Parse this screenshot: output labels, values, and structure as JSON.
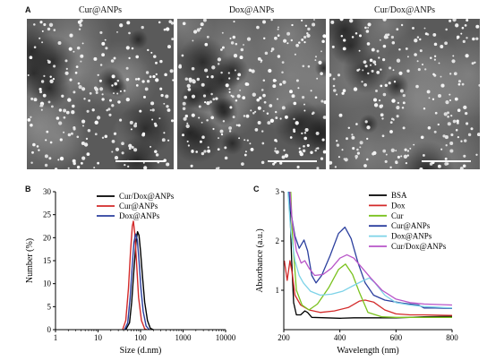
{
  "panel_a": {
    "letter": "A",
    "images": [
      {
        "title": "Cur@ANPs",
        "seed": 11,
        "dots": 230,
        "darkBlobs": 9
      },
      {
        "title": "Dox@ANPs",
        "seed": 37,
        "dots": 250,
        "darkBlobs": 14
      },
      {
        "title": "Cur/Dox@ANPs",
        "seed": 73,
        "dots": 240,
        "darkBlobs": 6
      }
    ]
  },
  "chart_data": [
    {
      "panel": "B",
      "type": "line",
      "xlabel": "Size (d.nm)",
      "ylabel": "Number (%)",
      "x_scale": "log",
      "xlim": [
        1,
        10000
      ],
      "ylim": [
        0,
        30
      ],
      "x_ticks": [
        "1",
        "10",
        "100",
        "1000",
        "10000"
      ],
      "y_ticks": [
        "0",
        "5",
        "10",
        "15",
        "20",
        "25",
        "30"
      ],
      "legend_position": "top-right",
      "series": [
        {
          "name": "Cur/Dox@ANPs",
          "color": "#000000",
          "points": [
            [
              45,
              0
            ],
            [
              55,
              1.5
            ],
            [
              62,
              6
            ],
            [
              70,
              13
            ],
            [
              78,
              19
            ],
            [
              85,
              21.3
            ],
            [
              92,
              20.5
            ],
            [
              100,
              17
            ],
            [
              110,
              12
            ],
            [
              125,
              6
            ],
            [
              145,
              2
            ],
            [
              170,
              0.3
            ],
            [
              200,
              0
            ]
          ]
        },
        {
          "name": "Cur@ANPs",
          "color": "#d32a2a",
          "points": [
            [
              38,
              0
            ],
            [
              45,
              2
            ],
            [
              52,
              9
            ],
            [
              58,
              17
            ],
            [
              64,
              22.5
            ],
            [
              68,
              23.6
            ],
            [
              73,
              21
            ],
            [
              80,
              15
            ],
            [
              90,
              7
            ],
            [
              105,
              2
            ],
            [
              125,
              0.2
            ],
            [
              140,
              0
            ]
          ]
        },
        {
          "name": "Dox@ANPs",
          "color": "#2b3f9e",
          "points": [
            [
              42,
              0
            ],
            [
              50,
              1.5
            ],
            [
              57,
              7
            ],
            [
              64,
              14
            ],
            [
              70,
              19
            ],
            [
              77,
              20.8
            ],
            [
              84,
              19.5
            ],
            [
              92,
              15
            ],
            [
              102,
              9
            ],
            [
              115,
              4
            ],
            [
              135,
              0.8
            ],
            [
              160,
              0
            ]
          ]
        }
      ]
    },
    {
      "panel": "C",
      "type": "line",
      "xlabel": "Wavelength (nm)",
      "ylabel": "Absorbance (a.u.)",
      "xlim": [
        200,
        800
      ],
      "ylim": [
        0.2,
        3
      ],
      "x_ticks": [
        "200",
        "400",
        "600",
        "800"
      ],
      "y_ticks": [
        "1",
        "2",
        "3"
      ],
      "legend_position": "top-right",
      "series": [
        {
          "name": "BSA",
          "color": "#000000",
          "points": [
            [
              220,
              3
            ],
            [
              228,
              1.6
            ],
            [
              235,
              0.75
            ],
            [
              245,
              0.5
            ],
            [
              260,
              0.5
            ],
            [
              275,
              0.58
            ],
            [
              285,
              0.55
            ],
            [
              300,
              0.45
            ],
            [
              350,
              0.44
            ],
            [
              400,
              0.43
            ],
            [
              450,
              0.44
            ],
            [
              500,
              0.44
            ],
            [
              600,
              0.44
            ],
            [
              650,
              0.45
            ],
            [
              700,
              0.46
            ],
            [
              800,
              0.47
            ]
          ]
        },
        {
          "name": "Dox",
          "color": "#d32a2a",
          "points": [
            [
              202,
              1.6
            ],
            [
              212,
              1.2
            ],
            [
              222,
              1.6
            ],
            [
              230,
              1.35
            ],
            [
              240,
              0.9
            ],
            [
              260,
              0.7
            ],
            [
              290,
              0.6
            ],
            [
              330,
              0.55
            ],
            [
              380,
              0.58
            ],
            [
              430,
              0.65
            ],
            [
              470,
              0.78
            ],
            [
              490,
              0.8
            ],
            [
              520,
              0.76
            ],
            [
              560,
              0.6
            ],
            [
              600,
              0.52
            ],
            [
              650,
              0.5
            ],
            [
              700,
              0.5
            ],
            [
              800,
              0.49
            ]
          ]
        },
        {
          "name": "Cur",
          "color": "#7ac21e",
          "points": [
            [
              225,
              3
            ],
            [
              232,
              2.0
            ],
            [
              245,
              1.0
            ],
            [
              265,
              0.7
            ],
            [
              290,
              0.6
            ],
            [
              320,
              0.72
            ],
            [
              360,
              1.05
            ],
            [
              395,
              1.42
            ],
            [
              420,
              1.53
            ],
            [
              445,
              1.32
            ],
            [
              470,
              0.95
            ],
            [
              500,
              0.55
            ],
            [
              550,
              0.46
            ],
            [
              600,
              0.45
            ],
            [
              700,
              0.45
            ],
            [
              800,
              0.45
            ]
          ]
        },
        {
          "name": "Cur@ANPs",
          "color": "#2b3f9e",
          "points": [
            [
              218,
              3
            ],
            [
              225,
              2.6
            ],
            [
              240,
              2.1
            ],
            [
              255,
              1.85
            ],
            [
              272,
              2.02
            ],
            [
              285,
              1.8
            ],
            [
              300,
              1.3
            ],
            [
              315,
              1.15
            ],
            [
              335,
              1.3
            ],
            [
              365,
              1.7
            ],
            [
              395,
              2.15
            ],
            [
              418,
              2.28
            ],
            [
              440,
              2.05
            ],
            [
              465,
              1.55
            ],
            [
              490,
              1.15
            ],
            [
              520,
              0.9
            ],
            [
              560,
              0.8
            ],
            [
              620,
              0.74
            ],
            [
              680,
              0.7
            ],
            [
              700,
              0.64
            ],
            [
              740,
              0.64
            ],
            [
              800,
              0.63
            ]
          ]
        },
        {
          "name": "Dox@ANPs",
          "color": "#7ed3e8",
          "points": [
            [
              215,
              3
            ],
            [
              225,
              2.2
            ],
            [
              240,
              1.6
            ],
            [
              255,
              1.3
            ],
            [
              270,
              1.15
            ],
            [
              295,
              0.98
            ],
            [
              330,
              0.9
            ],
            [
              370,
              0.92
            ],
            [
              410,
              0.98
            ],
            [
              450,
              1.1
            ],
            [
              485,
              1.2
            ],
            [
              505,
              1.25
            ],
            [
              525,
              1.15
            ],
            [
              560,
              0.9
            ],
            [
              600,
              0.75
            ],
            [
              650,
              0.7
            ],
            [
              700,
              0.67
            ],
            [
              800,
              0.64
            ]
          ]
        },
        {
          "name": "Cur/Dox@ANPs",
          "color": "#b855c8",
          "points": [
            [
              222,
              3
            ],
            [
              230,
              2.4
            ],
            [
              245,
              1.8
            ],
            [
              262,
              1.55
            ],
            [
              275,
              1.6
            ],
            [
              290,
              1.45
            ],
            [
              310,
              1.3
            ],
            [
              340,
              1.32
            ],
            [
              370,
              1.45
            ],
            [
              400,
              1.65
            ],
            [
              425,
              1.72
            ],
            [
              450,
              1.65
            ],
            [
              480,
              1.45
            ],
            [
              510,
              1.25
            ],
            [
              550,
              1.0
            ],
            [
              600,
              0.82
            ],
            [
              650,
              0.75
            ],
            [
              700,
              0.72
            ],
            [
              800,
              0.7
            ]
          ]
        }
      ]
    }
  ]
}
